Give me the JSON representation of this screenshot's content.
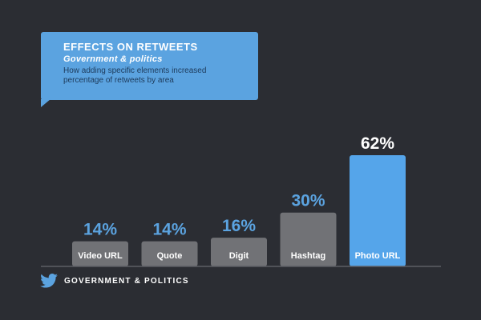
{
  "header": {
    "title": "EFFECTS ON RETWEETS",
    "subtitle": "Government & politics",
    "description": "How adding specific elements increased percentage of retweets by area"
  },
  "footer": {
    "label": "GOVERNMENT & POLITICS",
    "icon": "twitter-bird-icon"
  },
  "colors": {
    "background": "#2b2d33",
    "accent": "#5ba3e0",
    "bar_grey": "#717276",
    "bar_highlight": "#55a5ea",
    "value_label": "#5ba3e0",
    "value_label_highlight": "#ffffff"
  },
  "chart_data": {
    "type": "bar",
    "title": "EFFECTS ON RETWEETS",
    "subtitle": "Government & politics",
    "categories": [
      "Video URL",
      "Quote",
      "Digit",
      "Hashtag",
      "Photo URL"
    ],
    "values": [
      14,
      14,
      16,
      30,
      62
    ],
    "value_labels": [
      "14%",
      "14%",
      "16%",
      "30%",
      "62%"
    ],
    "highlight_index": 4,
    "unit": "%",
    "ylim": [
      0,
      62
    ],
    "grid": false,
    "legend": "none"
  }
}
